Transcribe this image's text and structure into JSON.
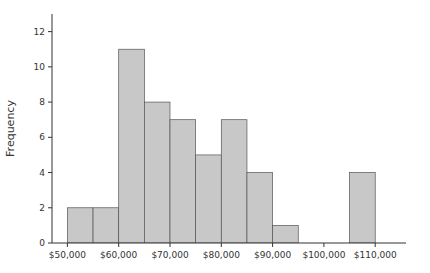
{
  "chart_data": {
    "type": "bar",
    "x": [
      50000,
      55000,
      60000,
      65000,
      70000,
      75000,
      80000,
      85000,
      90000,
      95000,
      105000
    ],
    "bin_width": 5000,
    "values": [
      2,
      2,
      11,
      8,
      7,
      5,
      7,
      4,
      1,
      0,
      4
    ],
    "color": "#c8c8c8",
    "y_label": "Frequency",
    "xlim": [
      47000,
      116000
    ],
    "ylim": [
      0,
      13
    ],
    "yticks": [
      0,
      2,
      4,
      6,
      8,
      10,
      12
    ],
    "xticks": [
      {
        "value": 50000,
        "label": "$50,000"
      },
      {
        "value": 60000,
        "label": "$60,000"
      },
      {
        "value": 70000,
        "label": "$70,000"
      },
      {
        "value": 80000,
        "label": "$80,000"
      },
      {
        "value": 90000,
        "label": "$90,000"
      },
      {
        "value": 100000,
        "label": "$100,000"
      },
      {
        "value": 110000,
        "label": "$110,000"
      }
    ],
    "grid": false
  }
}
